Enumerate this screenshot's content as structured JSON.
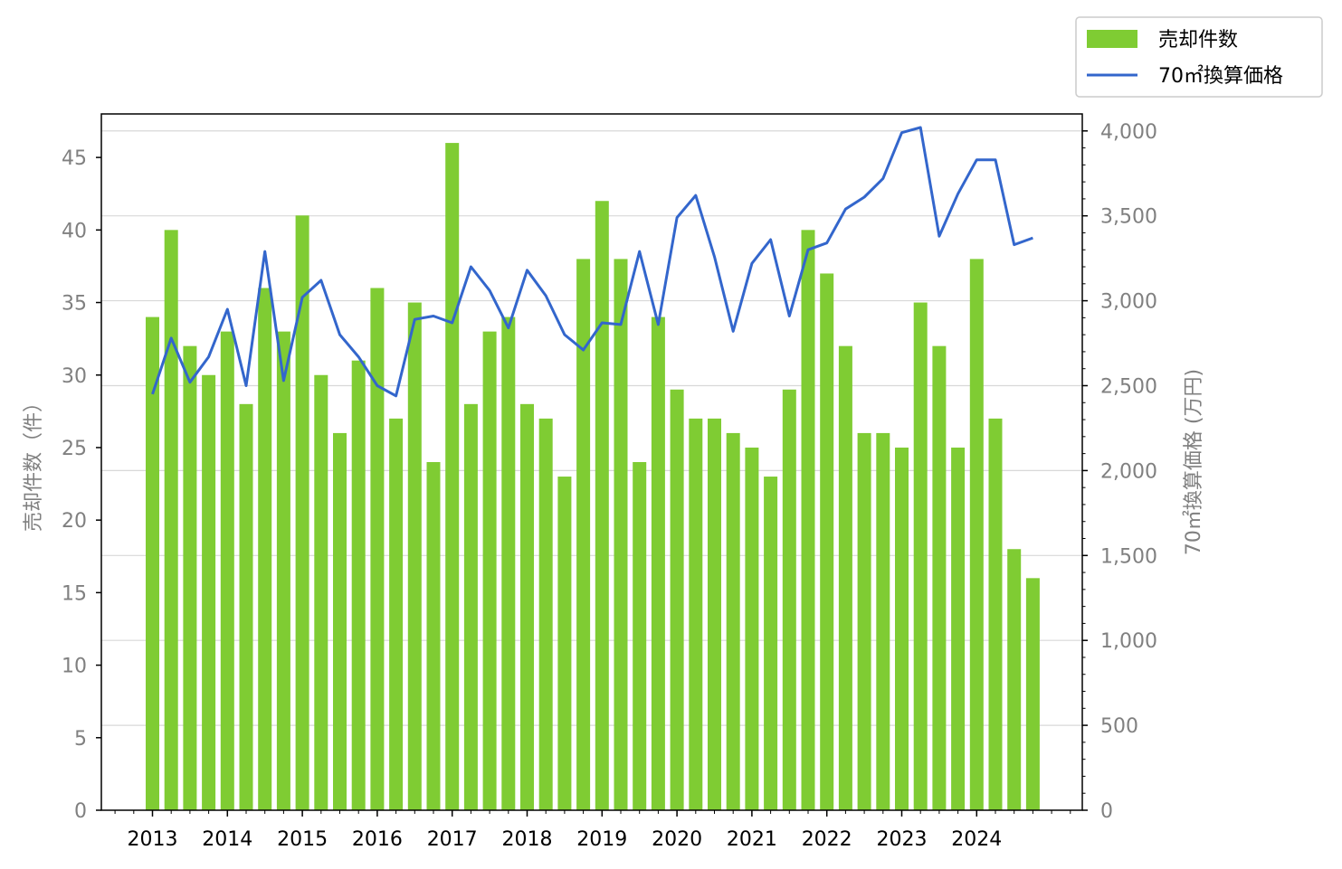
{
  "chart_data": {
    "type": "bar",
    "x_tick_labels": [
      "2013",
      "2014",
      "2015",
      "2016",
      "2017",
      "2018",
      "2019",
      "2020",
      "2021",
      "2022",
      "2023",
      "2024"
    ],
    "y_left": {
      "label": "売却件数（件）",
      "range": [
        0,
        48
      ],
      "ticks": [
        0,
        5,
        10,
        15,
        20,
        25,
        30,
        35,
        40,
        45
      ]
    },
    "y_right": {
      "label": "70㎡換算価格 (万円)",
      "range": [
        0,
        4100
      ],
      "ticks": [
        "0",
        "500",
        "1,000",
        "1,500",
        "2,000",
        "2,500",
        "3,000",
        "3,500",
        "4,000"
      ],
      "tick_values": [
        0,
        500,
        1000,
        1500,
        2000,
        2500,
        3000,
        3500,
        4000
      ]
    },
    "series": [
      {
        "name": "売却件数",
        "type": "bar",
        "axis": "left",
        "values": [
          34,
          40,
          32,
          30,
          33,
          28,
          36,
          33,
          41,
          30,
          26,
          31,
          36,
          27,
          35,
          24,
          46,
          28,
          33,
          34,
          28,
          27,
          23,
          38,
          42,
          38,
          24,
          34,
          29,
          27,
          27,
          26,
          25,
          23,
          29,
          40,
          37,
          32,
          26,
          26,
          25,
          35,
          32,
          25,
          38,
          27,
          18,
          16
        ]
      },
      {
        "name": "70㎡換算価格",
        "type": "line",
        "axis": "right",
        "values": [
          2450,
          2780,
          2520,
          2670,
          2950,
          2500,
          3290,
          2530,
          3020,
          3120,
          2800,
          2670,
          2500,
          2440,
          2890,
          2910,
          2870,
          3200,
          3060,
          2840,
          3180,
          3030,
          2800,
          2710,
          2870,
          2860,
          3290,
          2860,
          3490,
          3620,
          3260,
          2820,
          3220,
          3360,
          2910,
          3300,
          3340,
          3540,
          3610,
          3720,
          3990,
          4020,
          3380,
          3630,
          3830,
          3830,
          3330,
          3370
        ]
      }
    ],
    "grid": "horizontal",
    "legend_position": "top-right",
    "colors": {
      "bars": "#7fcc33",
      "line": "#3366cc",
      "grid": "#d8d8d8",
      "tick_label": "#808080"
    }
  }
}
